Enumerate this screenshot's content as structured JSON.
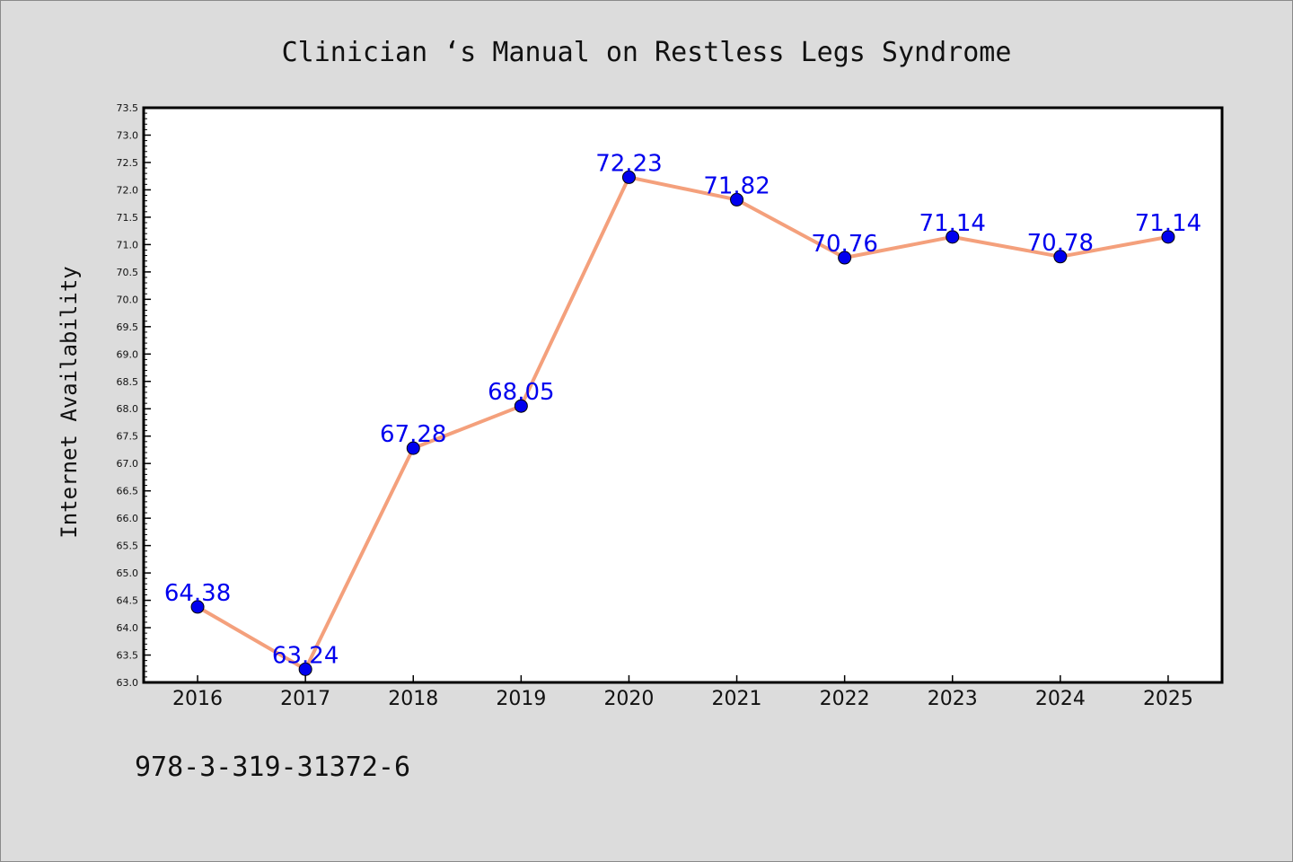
{
  "chart_data": {
    "type": "line",
    "title": "Clinician ‘s Manual on Restless Legs Syndrome",
    "xlabel": "",
    "ylabel": "Internet Availability",
    "categories": [
      "2016",
      "2017",
      "2018",
      "2019",
      "2020",
      "2021",
      "2022",
      "2023",
      "2024",
      "2025"
    ],
    "series": [
      {
        "values": [
          64.38,
          63.24,
          67.28,
          68.05,
          72.23,
          71.82,
          70.76,
          71.14,
          70.78,
          71.14
        ]
      }
    ],
    "data_labels": [
      "64.38",
      "63.24",
      "67.28",
      "68.05",
      "72.23",
      "71.82",
      "70.76",
      "71.14",
      "70.78",
      "71.14"
    ],
    "ylim": [
      63.0,
      73.5
    ],
    "yticks": [
      "63.0",
      "63.5",
      "64.0",
      "64.5",
      "65.0",
      "65.5",
      "66.0",
      "66.5",
      "67.0",
      "67.5",
      "68.0",
      "68.5",
      "69.0",
      "69.5",
      "70.0",
      "70.5",
      "71.0",
      "71.5",
      "72.0",
      "72.5",
      "73.0",
      "73.5"
    ],
    "grid": false,
    "legend": "none",
    "colors": {
      "line": "#f4a07c",
      "marker": "#0000ee",
      "label": "#0000ee",
      "axes": "#000000",
      "background": "#dcdcdc",
      "plot_background": "#ffffff"
    }
  },
  "footer": {
    "code": "978-3-319-31372-6"
  }
}
